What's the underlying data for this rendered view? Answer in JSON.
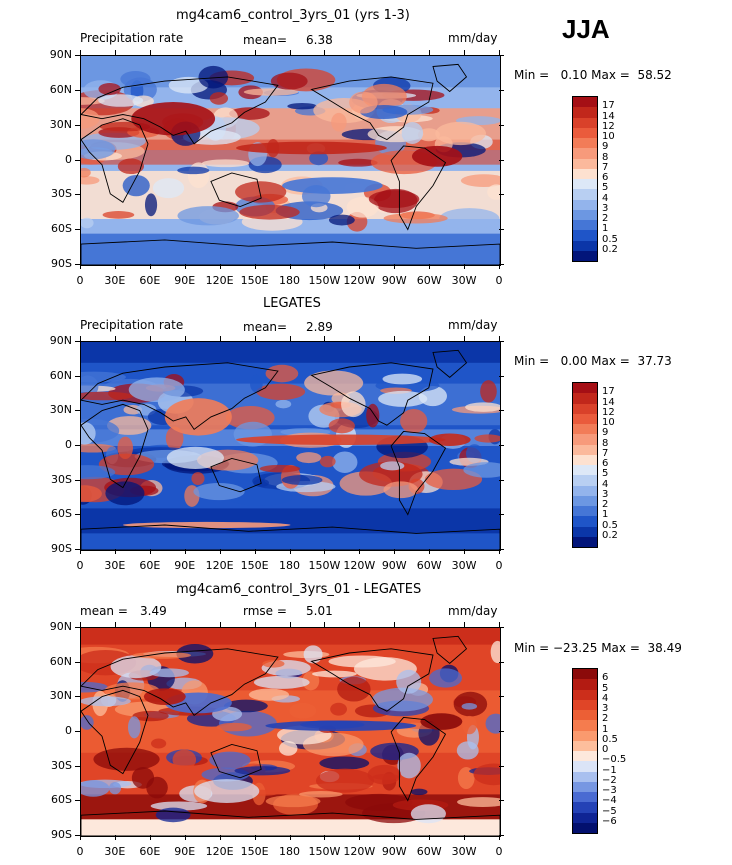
{
  "season": "JJA",
  "lon_ticks": [
    "0",
    "30E",
    "60E",
    "90E",
    "120E",
    "150E",
    "180",
    "150W",
    "120W",
    "90W",
    "60W",
    "30W",
    "0"
  ],
  "lat_ticks": [
    "90N",
    "60N",
    "30N",
    "0",
    "30S",
    "60S",
    "90S"
  ],
  "panels": [
    {
      "title": "mg4cam6_control_3yrs_01 (yrs 1-3)",
      "left_label": "Precipitation rate",
      "center_label": "mean=",
      "center_value": "6.38",
      "units": "mm/day",
      "minmax": "Min =   0.10 Max =  58.52",
      "colorbar_labels": [
        "17",
        "14",
        "12",
        "10",
        "9",
        "8",
        "7",
        "6",
        "5",
        "4",
        "3",
        "2",
        "1",
        "0.5",
        "0.2"
      ],
      "colorbar_colors": [
        "#a50f15",
        "#c1271b",
        "#d9412a",
        "#ea5b3c",
        "#f27c58",
        "#f79a7b",
        "#fbb99c",
        "#fde1d0",
        "#dde8f7",
        "#b8cff2",
        "#93b4ec",
        "#6c97e2",
        "#4576d6",
        "#1f55c8",
        "#0b36a8",
        "#02157a"
      ]
    },
    {
      "title": "LEGATES",
      "left_label": "Precipitation rate",
      "center_label": "mean=",
      "center_value": "2.89",
      "units": "mm/day",
      "minmax": "Min =   0.00 Max =  37.73",
      "colorbar_labels": [
        "17",
        "14",
        "12",
        "10",
        "9",
        "8",
        "7",
        "6",
        "5",
        "4",
        "3",
        "2",
        "1",
        "0.5",
        "0.2"
      ],
      "colorbar_colors": [
        "#a50f15",
        "#c1271b",
        "#d9412a",
        "#ea5b3c",
        "#f27c58",
        "#f79a7b",
        "#fbb99c",
        "#fde1d0",
        "#dde8f7",
        "#b8cff2",
        "#93b4ec",
        "#6c97e2",
        "#4576d6",
        "#1f55c8",
        "#0b36a8",
        "#02157a"
      ]
    },
    {
      "title": "mg4cam6_control_3yrs_01 - LEGATES",
      "left_label": "mean =",
      "left_value": "3.49",
      "center_label": "rmse =",
      "center_value": "5.01",
      "units": "mm/day",
      "minmax": "Min = −23.25 Max =  38.49",
      "colorbar_labels": [
        "6",
        "5",
        "4",
        "3",
        "2",
        "1",
        "0.5",
        "0",
        "−0.5",
        "−1",
        "−2",
        "−3",
        "−4",
        "−5",
        "−6"
      ],
      "colorbar_colors": [
        "#8b0a0a",
        "#b31b12",
        "#cc2e1b",
        "#e04527",
        "#ec5f35",
        "#f57c4e",
        "#fa9a6e",
        "#fdbe9c",
        "#fde8dc",
        "#dbe4f7",
        "#a9c0ef",
        "#7797e2",
        "#4a6bd2",
        "#2442b6",
        "#0f2494",
        "#03106e"
      ]
    }
  ]
}
